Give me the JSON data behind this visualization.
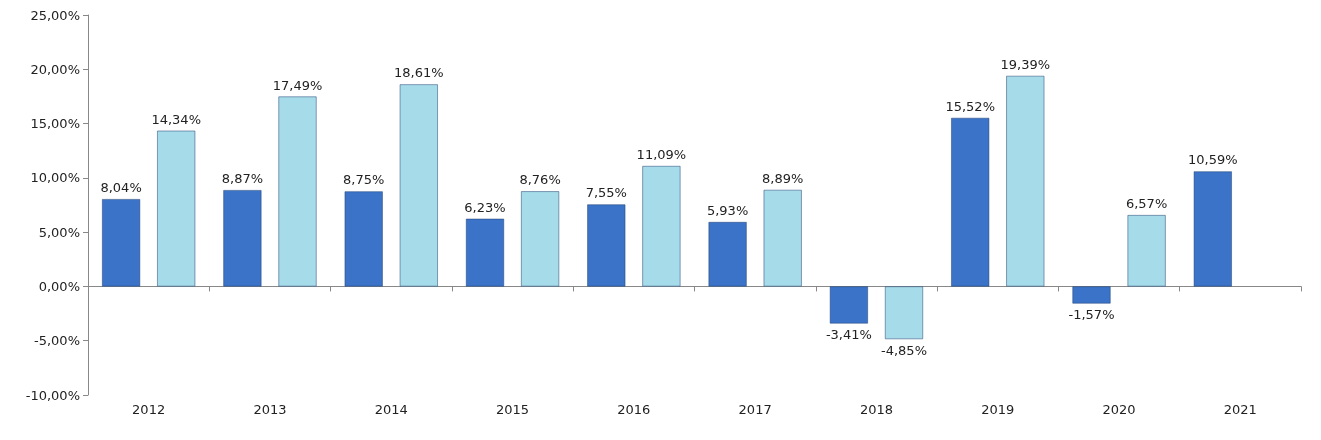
{
  "chart_data": {
    "type": "bar",
    "categories": [
      "2012",
      "2013",
      "2014",
      "2015",
      "2016",
      "2017",
      "2018",
      "2019",
      "2020",
      "2021"
    ],
    "series": [
      {
        "color": "#3b73c8",
        "values": [
          8.04,
          8.87,
          8.75,
          6.23,
          7.55,
          5.93,
          -3.41,
          15.52,
          -1.57,
          10.59
        ],
        "value_labels": [
          "8,04%",
          "8,87%",
          "8,75%",
          "6,23%",
          "7,55%",
          "5,93%",
          "-3,41%",
          "15,52%",
          "-1,57%",
          "10,59%"
        ]
      },
      {
        "color": "#a6dce9",
        "values": [
          14.34,
          17.49,
          18.61,
          8.76,
          11.09,
          8.89,
          -4.85,
          19.39,
          6.57,
          null
        ],
        "value_labels": [
          "14,34%",
          "17,49%",
          "18,61%",
          "8,76%",
          "11,09%",
          "8,89%",
          "-4,85%",
          "19,39%",
          "6,57%",
          null
        ]
      }
    ],
    "ylim": [
      -10,
      25
    ],
    "yticks": [
      {
        "value": -10,
        "label": "-10,00%"
      },
      {
        "value": -5,
        "label": "-5,00%"
      },
      {
        "value": 0,
        "label": "0,00%"
      },
      {
        "value": 5,
        "label": "5,00%"
      },
      {
        "value": 10,
        "label": "10,00%"
      },
      {
        "value": 15,
        "label": "15,00%"
      },
      {
        "value": 20,
        "label": "20,00%"
      },
      {
        "value": 25,
        "label": "25,00%"
      }
    ],
    "ylabel": null
  }
}
